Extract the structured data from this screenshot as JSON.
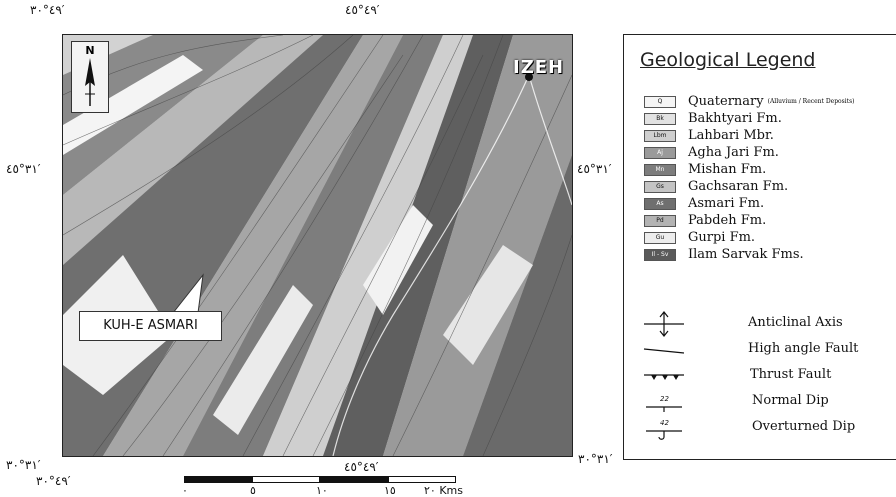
{
  "coords": {
    "top_left": "٤٩°٣٠′",
    "top_center": "٤٩°٤٥′",
    "left_mid": "٣١°٤٥′",
    "right_mid": "٣١°٤٥′",
    "bottom_left_lat": "٣١°٣٠′",
    "bottom_left_lon": "٤٩°٣٠′",
    "bottom_center": "٤٩°٤٥′",
    "bottom_right": "٣١°٣٠′"
  },
  "map": {
    "north_label": "N",
    "town_label": "IZEH",
    "callout_label": "KUH-E ASMARI"
  },
  "scale_bar": {
    "ticks": [
      "٠",
      "٥",
      "١٠",
      "١٥",
      "٢٠ Kms"
    ]
  },
  "legend": {
    "title": "Geological Legend",
    "units": [
      {
        "abbr": "Q",
        "name": "Quaternary",
        "note": "(Alluvium / Recent Deposits)",
        "color": "#f5f5f5"
      },
      {
        "abbr": "Bk",
        "name": "Bakhtyari Fm.",
        "note": "",
        "color": "#e2e2e2"
      },
      {
        "abbr": "Lbm",
        "name": "Lahbari Mbr.",
        "note": "",
        "color": "#cfcfcf"
      },
      {
        "abbr": "Aj",
        "name": "Agha Jari Fm.",
        "note": "",
        "color": "#9a9a9a"
      },
      {
        "abbr": "Mn",
        "name": "Mishan Fm.",
        "note": "",
        "color": "#7d7d7d"
      },
      {
        "abbr": "Gs",
        "name": "Gachsaran Fm.",
        "note": "",
        "color": "#c4c4c4"
      },
      {
        "abbr": "As",
        "name": "Asmari Fm.",
        "note": "",
        "color": "#6f6f6f"
      },
      {
        "abbr": "Pd",
        "name": "Pabdeh Fm.",
        "note": "",
        "color": "#b3b3b3"
      },
      {
        "abbr": "Gu",
        "name": "Gurpi Fm.",
        "note": "",
        "color": "#ededed"
      },
      {
        "abbr": "Il - Sv",
        "name": "Ilam Sarvak Fms.",
        "note": "",
        "color": "#5a5a5a"
      }
    ],
    "symbols": [
      {
        "icon": "anticlinal-axis-icon",
        "label": "Anticlinal Axis"
      },
      {
        "icon": "high-angle-fault-icon",
        "label": "High angle Fault"
      },
      {
        "icon": "thrust-fault-icon",
        "label": "Thrust Fault"
      },
      {
        "icon": "normal-dip-icon",
        "label": "Normal Dip",
        "value": "22"
      },
      {
        "icon": "overturned-dip-icon",
        "label": "Overturned Dip",
        "value": "42"
      }
    ]
  }
}
